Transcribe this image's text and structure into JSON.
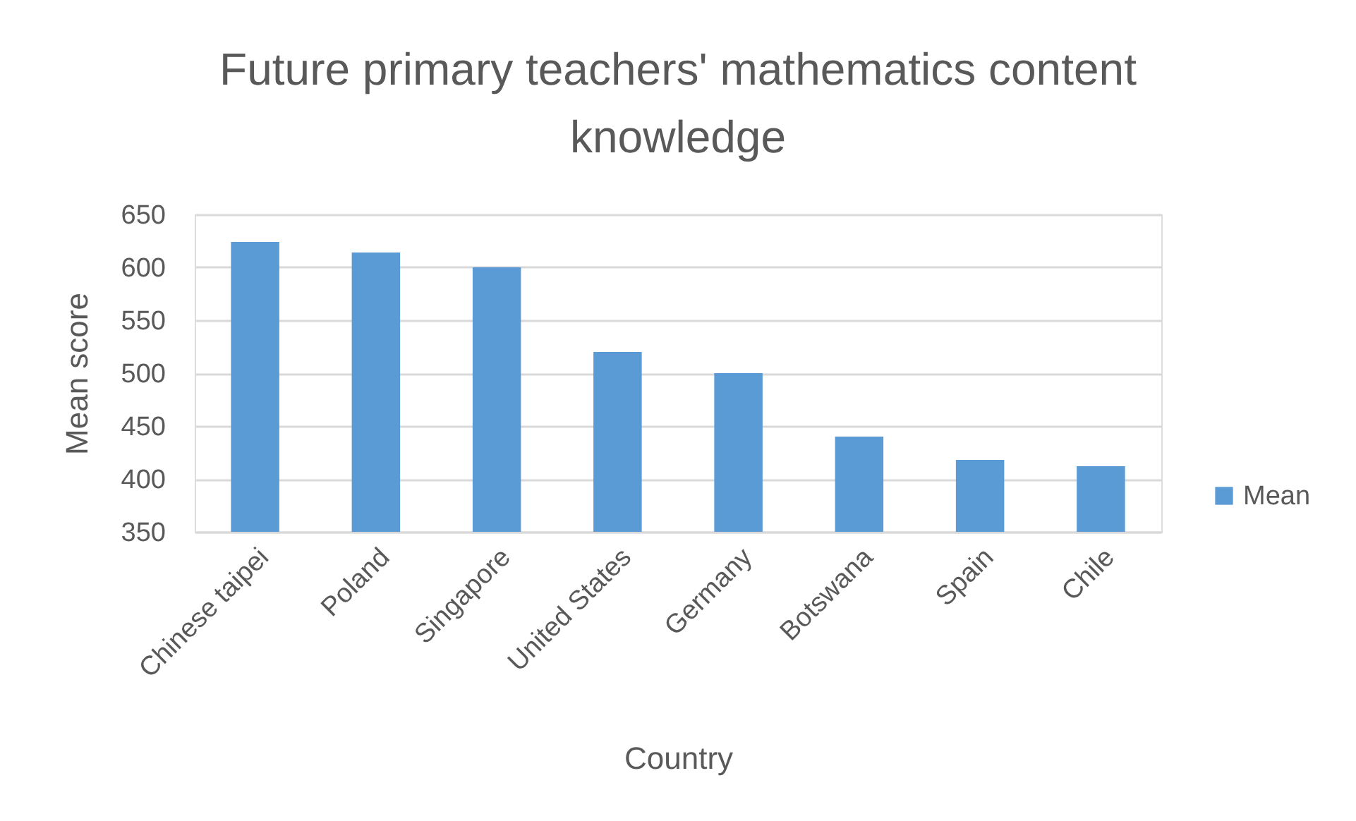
{
  "chart_data": {
    "type": "bar",
    "title": "Future primary teachers' mathematics content knowledge",
    "xlabel": "Country",
    "ylabel": "Mean score",
    "categories": [
      "Chinese taipei",
      "Poland",
      "Singapore",
      "United States",
      "Germany",
      "Botswana",
      "Spain",
      "Chile"
    ],
    "series": [
      {
        "name": "Mean",
        "color": "#5b9bd5",
        "values": [
          624,
          614,
          600,
          520,
          500,
          440,
          418,
          412
        ]
      }
    ],
    "ylim": [
      350,
      650
    ],
    "yticks": [
      350,
      400,
      450,
      500,
      550,
      600,
      650
    ],
    "grid": "y",
    "legend": "right"
  }
}
